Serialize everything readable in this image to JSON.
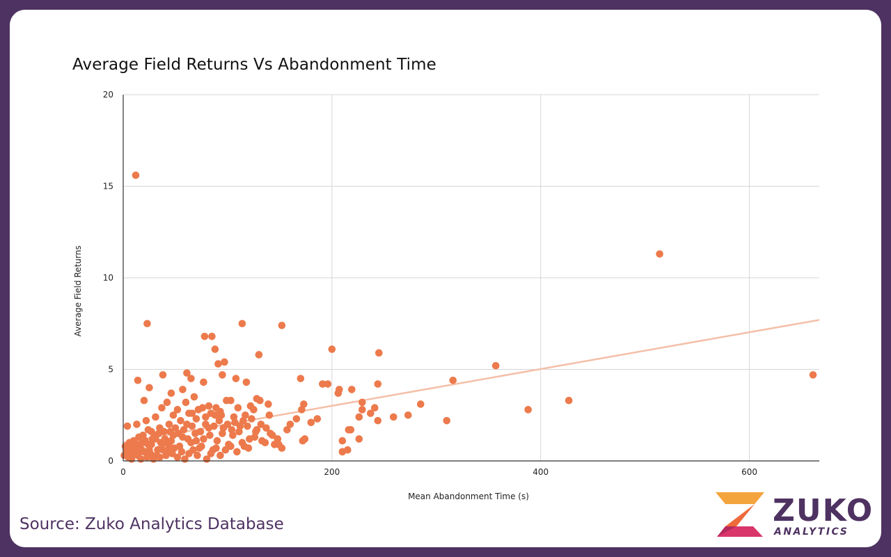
{
  "colors": {
    "frame": "#4e3262",
    "point": "#ec7a4c",
    "trendline": "#f4bfa8",
    "grid": "#d6d6d6"
  },
  "source": "Source: Zuko Analytics Database",
  "logo": {
    "word": "ZUKO",
    "sub": "ANALYTICS"
  },
  "chart_data": {
    "type": "scatter",
    "title": "Average Field Returns Vs Abandonment Time",
    "xlabel": "Mean Abandonment Time (s)",
    "ylabel": "Average Field Returns",
    "xlim": [
      0,
      667
    ],
    "ylim": [
      0,
      20
    ],
    "xticks": [
      0,
      200,
      400,
      600
    ],
    "yticks": [
      0,
      5,
      10,
      15,
      20
    ],
    "grid": true,
    "legend": "none",
    "trendline": {
      "from": [
        0,
        1.0
      ],
      "to": [
        667,
        7.7
      ]
    },
    "points": [
      [
        12,
        15.6
      ],
      [
        514,
        11.3
      ],
      [
        661,
        4.7
      ],
      [
        23,
        7.5
      ],
      [
        114,
        7.5
      ],
      [
        152,
        7.4
      ],
      [
        78,
        6.8
      ],
      [
        85,
        6.8
      ],
      [
        200,
        6.1
      ],
      [
        88,
        6.1
      ],
      [
        245,
        5.9
      ],
      [
        130,
        5.8
      ],
      [
        97,
        5.4
      ],
      [
        91,
        5.3
      ],
      [
        357,
        5.2
      ],
      [
        38,
        4.7
      ],
      [
        61,
        4.8
      ],
      [
        65,
        4.5
      ],
      [
        95,
        4.7
      ],
      [
        108,
        4.5
      ],
      [
        170,
        4.5
      ],
      [
        316,
        4.4
      ],
      [
        14,
        4.4
      ],
      [
        77,
        4.3
      ],
      [
        118,
        4.3
      ],
      [
        191,
        4.2
      ],
      [
        196,
        4.2
      ],
      [
        244,
        4.2
      ],
      [
        207,
        3.9
      ],
      [
        219,
        3.9
      ],
      [
        25,
        4.0
      ],
      [
        57,
        3.9
      ],
      [
        68,
        3.5
      ],
      [
        46,
        3.7
      ],
      [
        206,
        3.7
      ],
      [
        427,
        3.3
      ],
      [
        229,
        3.2
      ],
      [
        285,
        3.1
      ],
      [
        173,
        3.1
      ],
      [
        139,
        3.1
      ],
      [
        128,
        3.4
      ],
      [
        122,
        3.0
      ],
      [
        99,
        3.3
      ],
      [
        103,
        3.3
      ],
      [
        20,
        3.3
      ],
      [
        42,
        3.2
      ],
      [
        60,
        3.2
      ],
      [
        82,
        3.0
      ],
      [
        37,
        2.9
      ],
      [
        52,
        2.8
      ],
      [
        72,
        2.8
      ],
      [
        93,
        2.7
      ],
      [
        110,
        2.9
      ],
      [
        125,
        2.8
      ],
      [
        131,
        3.3
      ],
      [
        171,
        2.8
      ],
      [
        241,
        2.9
      ],
      [
        237,
        2.6
      ],
      [
        229,
        2.8
      ],
      [
        388,
        2.8
      ],
      [
        273,
        2.5
      ],
      [
        310,
        2.2
      ],
      [
        259,
        2.4
      ],
      [
        244,
        2.2
      ],
      [
        226,
        2.4
      ],
      [
        186,
        2.3
      ],
      [
        180,
        2.1
      ],
      [
        166,
        2.3
      ],
      [
        160,
        2.0
      ],
      [
        140,
        2.5
      ],
      [
        117,
        2.5
      ],
      [
        106,
        2.4
      ],
      [
        88,
        2.5
      ],
      [
        79,
        2.4
      ],
      [
        66,
        2.6
      ],
      [
        48,
        2.5
      ],
      [
        31,
        2.4
      ],
      [
        22,
        2.2
      ],
      [
        13,
        2.0
      ],
      [
        4,
        1.9
      ],
      [
        216,
        1.7
      ],
      [
        218,
        1.7
      ],
      [
        226,
        1.2
      ],
      [
        210,
        1.1
      ],
      [
        215,
        0.6
      ],
      [
        210,
        0.5
      ],
      [
        172,
        1.1
      ],
      [
        174,
        1.2
      ],
      [
        157,
        1.7
      ],
      [
        149,
        0.9
      ],
      [
        152,
        0.7
      ],
      [
        141,
        1.5
      ],
      [
        133,
        1.1
      ],
      [
        128,
        1.7
      ],
      [
        121,
        1.2
      ],
      [
        116,
        0.8
      ],
      [
        112,
        1.9
      ],
      [
        105,
        1.4
      ],
      [
        101,
        0.9
      ],
      [
        95,
        1.5
      ],
      [
        90,
        1.1
      ],
      [
        86,
        0.6
      ],
      [
        82,
        1.8
      ],
      [
        77,
        1.2
      ],
      [
        73,
        0.7
      ],
      [
        69,
        1.5
      ],
      [
        65,
        1.0
      ],
      [
        61,
        2.0
      ],
      [
        57,
        1.3
      ],
      [
        54,
        0.8
      ],
      [
        50,
        1.8
      ],
      [
        46,
        1.1
      ],
      [
        43,
        0.5
      ],
      [
        39,
        1.6
      ],
      [
        36,
        1.0
      ],
      [
        33,
        0.6
      ],
      [
        30,
        1.4
      ],
      [
        27,
        0.9
      ],
      [
        24,
        1.7
      ],
      [
        21,
        1.1
      ],
      [
        18,
        0.6
      ],
      [
        15,
        1.3
      ],
      [
        12,
        0.8
      ],
      [
        9,
        0.5
      ],
      [
        6,
        1.0
      ],
      [
        3,
        0.6
      ],
      [
        1,
        0.3
      ],
      [
        5,
        0.2
      ],
      [
        8,
        0.1
      ],
      [
        11,
        0.4
      ],
      [
        14,
        0.3
      ],
      [
        17,
        0.1
      ],
      [
        20,
        0.5
      ],
      [
        23,
        0.2
      ],
      [
        26,
        0.4
      ],
      [
        29,
        0.1
      ],
      [
        32,
        0.3
      ],
      [
        35,
        0.2
      ],
      [
        38,
        0.6
      ],
      [
        41,
        0.3
      ],
      [
        44,
        0.8
      ],
      [
        47,
        0.4
      ],
      [
        52,
        0.2
      ],
      [
        56,
        0.5
      ],
      [
        59,
        0.1
      ],
      [
        63,
        0.4
      ],
      [
        67,
        0.6
      ],
      [
        71,
        0.3
      ],
      [
        75,
        0.8
      ],
      [
        80,
        0.1
      ],
      [
        84,
        0.4
      ],
      [
        89,
        0.7
      ],
      [
        93,
        0.3
      ],
      [
        98,
        0.6
      ],
      [
        103,
        0.8
      ],
      [
        109,
        0.5
      ],
      [
        114,
        1.0
      ],
      [
        120,
        0.7
      ],
      [
        126,
        1.3
      ],
      [
        136,
        1.0
      ],
      [
        145,
        0.9
      ],
      [
        2,
        0.8
      ],
      [
        7,
        0.7
      ],
      [
        10,
        1.1
      ],
      [
        16,
        0.9
      ],
      [
        19,
        1.4
      ],
      [
        25,
        0.6
      ],
      [
        28,
        1.2
      ],
      [
        34,
        1.5
      ],
      [
        37,
        0.9
      ],
      [
        40,
        1.2
      ],
      [
        45,
        1.6
      ],
      [
        49,
        0.7
      ],
      [
        53,
        1.5
      ],
      [
        58,
        1.7
      ],
      [
        62,
        1.2
      ],
      [
        66,
        1.9
      ],
      [
        70,
        1.1
      ],
      [
        74,
        1.6
      ],
      [
        79,
        2.0
      ],
      [
        83,
        1.4
      ],
      [
        87,
        1.9
      ],
      [
        92,
        2.2
      ],
      [
        96,
        1.8
      ],
      [
        100,
        2.0
      ],
      [
        104,
        1.7
      ],
      [
        107,
        2.1
      ],
      [
        111,
        1.6
      ],
      [
        115,
        2.2
      ],
      [
        119,
        1.9
      ],
      [
        123,
        2.3
      ],
      [
        127,
        1.6
      ],
      [
        132,
        2.0
      ],
      [
        137,
        1.8
      ],
      [
        143,
        1.4
      ],
      [
        148,
        1.2
      ],
      [
        55,
        2.2
      ],
      [
        63,
        2.6
      ],
      [
        70,
        2.3
      ],
      [
        76,
        2.9
      ],
      [
        84,
        2.6
      ],
      [
        89,
        2.9
      ],
      [
        94,
        2.5
      ],
      [
        48,
        1.4
      ],
      [
        44,
        2.0
      ],
      [
        41,
        1.0
      ],
      [
        35,
        1.8
      ],
      [
        31,
        1.2
      ],
      [
        27,
        1.6
      ],
      [
        24,
        0.9
      ],
      [
        19,
        1.0
      ],
      [
        16,
        0.5
      ],
      [
        13,
        0.9
      ],
      [
        10,
        0.6
      ],
      [
        7,
        0.4
      ],
      [
        4,
        0.5
      ]
    ]
  }
}
